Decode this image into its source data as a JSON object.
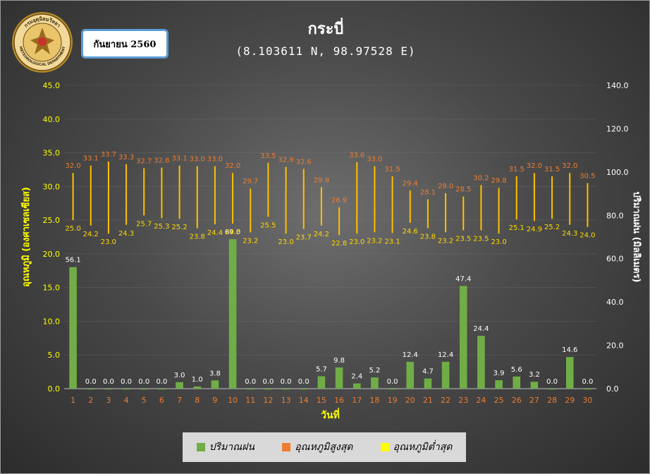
{
  "title": "กระบี่",
  "coordinates": "(8.103611 N, 98.97528 E)",
  "month_label": "กันยายน 2560",
  "logo": {
    "name": "meteorological-department-seal",
    "text_top": "กรมอุตุนิยมวิทยา",
    "text_bottom": "METEOROLOGICAL DEPARTMENT"
  },
  "colors": {
    "rain": "#70ad47",
    "tmax_label": "#ed7d31",
    "tmin_label": "#ffd700",
    "range_line": "#ffc000",
    "left_axis": "#ffff00",
    "right_axis": "#ffffff",
    "x_tick": "#ed7d31"
  },
  "chart_data": {
    "type": "bar",
    "xlabel": "วันที่",
    "ylabel_left": "อุณหภูมิ (องศาเซลเซียส)",
    "ylabel_right": "ปริมาณฝน (มิลลิเมตร)",
    "ylim_left": [
      0,
      45
    ],
    "ylim_right": [
      0,
      140
    ],
    "yticks_left": [
      "0.0",
      "5.0",
      "10.0",
      "15.0",
      "20.0",
      "25.0",
      "30.0",
      "35.0",
      "40.0",
      "45.0"
    ],
    "yticks_right": [
      "0.0",
      "20.0",
      "40.0",
      "60.0",
      "80.0",
      "100.0",
      "120.0",
      "140.0"
    ],
    "categories": [
      "1",
      "2",
      "3",
      "4",
      "5",
      "6",
      "7",
      "8",
      "9",
      "10",
      "11",
      "12",
      "13",
      "14",
      "15",
      "16",
      "17",
      "18",
      "19",
      "20",
      "21",
      "22",
      "23",
      "24",
      "25",
      "26",
      "27",
      "28",
      "29",
      "30"
    ],
    "series": [
      {
        "name": "ปริมาณฝน",
        "axis": "right",
        "type": "bar",
        "values": [
          56.1,
          0.0,
          0.0,
          0.0,
          0.0,
          0.0,
          3.0,
          1.0,
          3.8,
          69.0,
          0.0,
          0.0,
          0.0,
          0.0,
          5.7,
          9.8,
          2.4,
          5.2,
          0.0,
          12.4,
          4.7,
          12.4,
          47.4,
          24.4,
          3.9,
          5.6,
          3.2,
          0.0,
          14.6,
          0.0
        ]
      },
      {
        "name": "อุณหภูมิสูงสุด",
        "axis": "left",
        "type": "line",
        "values": [
          32.0,
          33.1,
          33.7,
          33.3,
          32.7,
          32.8,
          33.1,
          33.0,
          33.0,
          32.0,
          29.7,
          33.5,
          32.9,
          32.6,
          29.9,
          26.9,
          33.6,
          33.0,
          31.5,
          29.4,
          28.1,
          29.0,
          28.5,
          30.2,
          29.8,
          31.5,
          32.0,
          31.5,
          32.0,
          30.5
        ]
      },
      {
        "name": "อุณหภูมิต่ำสุด",
        "axis": "left",
        "type": "line",
        "values": [
          25.0,
          24.2,
          23.0,
          24.3,
          25.7,
          25.3,
          25.2,
          23.8,
          24.4,
          24.5,
          23.2,
          25.5,
          23.0,
          23.7,
          24.2,
          22.8,
          23.0,
          23.2,
          23.1,
          24.6,
          23.8,
          23.2,
          23.5,
          23.5,
          23.0,
          25.1,
          24.9,
          25.2,
          24.3,
          24.0
        ]
      }
    ],
    "legend": "bottom"
  }
}
